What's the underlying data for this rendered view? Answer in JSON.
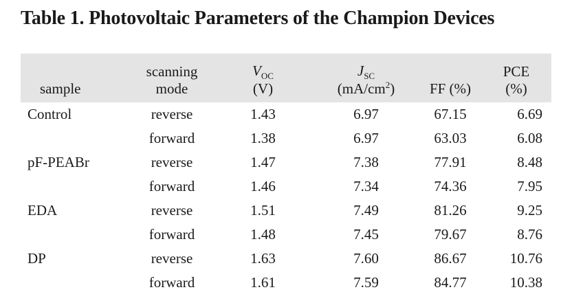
{
  "title": "Table 1. Photovoltaic Parameters of the Champion Devices",
  "colors": {
    "header_bg": "#e4e4e4",
    "text": "#1a1a1a"
  },
  "table": {
    "headers": {
      "sample": "sample",
      "scanning_line1": "scanning",
      "scanning_line2": "mode",
      "voc": {
        "symbol": "V",
        "sub": "OC",
        "unit": "(V)"
      },
      "jsc": {
        "symbol": "J",
        "sub": "SC",
        "unit_open": "(mA/cm",
        "unit_sup": "2",
        "unit_close": ")"
      },
      "ff": "FF (%)",
      "pce_line1": "PCE",
      "pce_line2": "(%)"
    },
    "rows": [
      {
        "sample": "Control",
        "mode": "reverse",
        "voc": "1.43",
        "jsc": "6.97",
        "ff": "67.15",
        "pce": "6.69"
      },
      {
        "sample": "",
        "mode": "forward",
        "voc": "1.38",
        "jsc": "6.97",
        "ff": "63.03",
        "pce": "6.08"
      },
      {
        "sample": "pF-PEABr",
        "mode": "reverse",
        "voc": "1.47",
        "jsc": "7.38",
        "ff": "77.91",
        "pce": "8.48"
      },
      {
        "sample": "",
        "mode": "forward",
        "voc": "1.46",
        "jsc": "7.34",
        "ff": "74.36",
        "pce": "7.95"
      },
      {
        "sample": "EDA",
        "mode": "reverse",
        "voc": "1.51",
        "jsc": "7.49",
        "ff": "81.26",
        "pce": "9.25"
      },
      {
        "sample": "",
        "mode": "forward",
        "voc": "1.48",
        "jsc": "7.45",
        "ff": "79.67",
        "pce": "8.76"
      },
      {
        "sample": "DP",
        "mode": "reverse",
        "voc": "1.63",
        "jsc": "7.60",
        "ff": "86.67",
        "pce": "10.76"
      },
      {
        "sample": "",
        "mode": "forward",
        "voc": "1.61",
        "jsc": "7.59",
        "ff": "84.77",
        "pce": "10.38"
      }
    ]
  }
}
